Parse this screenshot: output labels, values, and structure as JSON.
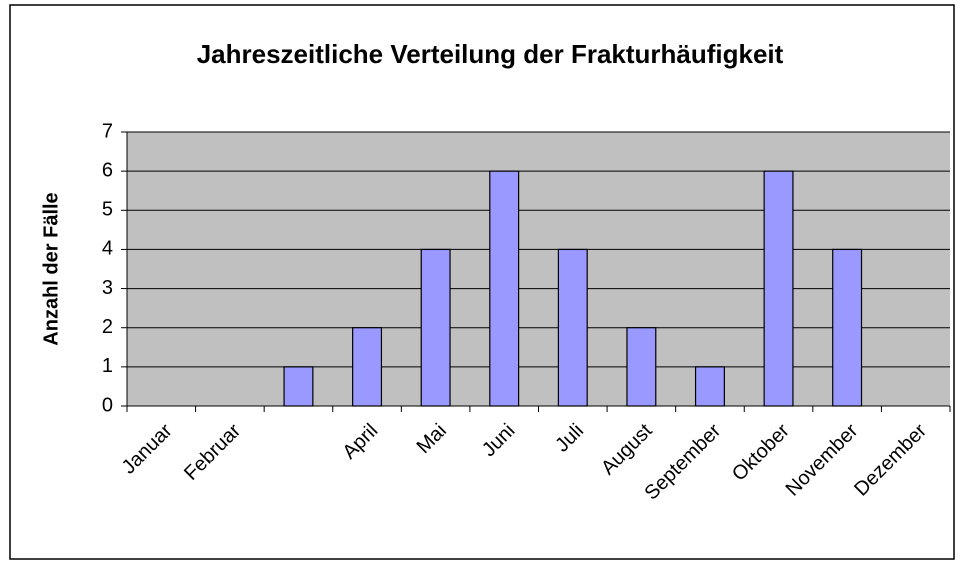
{
  "chart_data": {
    "type": "bar",
    "title": "Jahreszeitliche Verteilung der Frakturhäufigkeit",
    "y_label": "Anzahl der Fälle",
    "categories": [
      "Januar",
      "Februar",
      null,
      "April",
      "Mai",
      "Juni",
      "Juli",
      "August",
      "September",
      "Oktober",
      "November",
      "Dezember"
    ],
    "values": [
      0,
      0,
      1,
      2,
      4,
      6,
      4,
      2,
      1,
      6,
      4,
      0
    ],
    "color": "#9999ff",
    "plot_background": "#c0c0c0",
    "ylim": [
      0,
      7
    ],
    "yticks": [
      0,
      1,
      2,
      3,
      4,
      5,
      6,
      7
    ],
    "grid": true
  }
}
